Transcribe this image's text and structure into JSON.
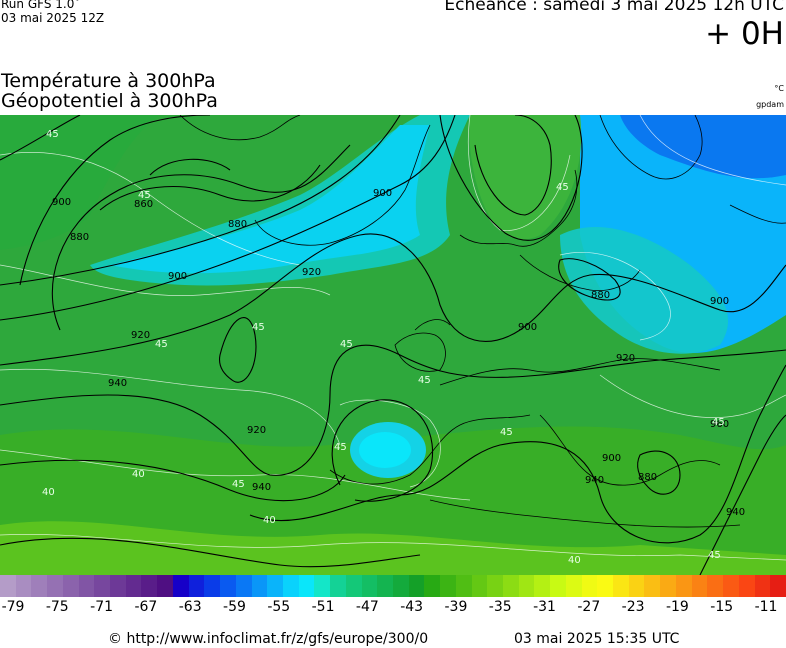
{
  "header": {
    "run_label": "Run GFS 1.0˚",
    "run_date": "03 mai 2025 12Z",
    "echeance": "Echéance : samedi 3 mai 2025 12h UTC",
    "lead_time": "+ 0H"
  },
  "parameters": {
    "line1": "Température à 300hPa",
    "line2": "Géopotentiel à 300hPa",
    "unit_temp": "°C",
    "unit_geo": "gpdam"
  },
  "map": {
    "geopotential_labels": [
      "900",
      "880",
      "860",
      "900",
      "880",
      "900",
      "920",
      "920",
      "940",
      "920",
      "940",
      "900",
      "880",
      "900",
      "920",
      "900",
      "880",
      "940",
      "960",
      "940"
    ],
    "temperature_labels": [
      "45",
      "45",
      "45",
      "45",
      "45",
      "45",
      "45",
      "45",
      "45",
      "40",
      "40",
      "40",
      "40",
      "45",
      "45",
      "45"
    ]
  },
  "scale": {
    "colors": [
      "#b49cc8",
      "#a98dc1",
      "#9f7fba",
      "#9571b3",
      "#8b63ac",
      "#8155a5",
      "#77479e",
      "#6d3997",
      "#632b90",
      "#591d89",
      "#4f0f82",
      "#1600c8",
      "#0f20dc",
      "#0a3ce8",
      "#0a5af0",
      "#0a78f5",
      "#0a96f8",
      "#0ab4fa",
      "#0ad2fc",
      "#0ae6fa",
      "#14e6c8",
      "#14d296",
      "#14c878",
      "#14be64",
      "#14b450",
      "#14aa3c",
      "#14a028",
      "#28aa14",
      "#3cb414",
      "#50be14",
      "#64c814",
      "#78d214",
      "#8cdc14",
      "#a0e614",
      "#b4f014",
      "#c8fa14",
      "#dcfa14",
      "#f0fa14",
      "#fafa14",
      "#fae614",
      "#fad214",
      "#fabe14",
      "#faaa14",
      "#fa9614",
      "#fa8214",
      "#fa6e14",
      "#fa5a14",
      "#fa4614",
      "#f03214",
      "#e61e14"
    ],
    "ticks": [
      "-79",
      "-75",
      "-71",
      "-67",
      "-63",
      "-59",
      "-55",
      "-51",
      "-47",
      "-43",
      "-39",
      "-35",
      "-31",
      "-27",
      "-23",
      "-19",
      "-15",
      "-11"
    ]
  },
  "footer": {
    "url": "© http://www.infoclimat.fr/z/gfs/europe/300/0",
    "generated": "03 mai 2025 15:35 UTC"
  }
}
